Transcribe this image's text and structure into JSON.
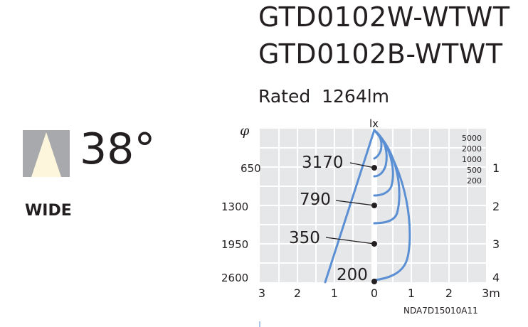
{
  "models": [
    "GTD0102W-WTWT",
    "GTD0102B-WTWT"
  ],
  "rated_label": "Rated",
  "rated_value": "1264lm",
  "beam_angle": "38°",
  "beam_type": "WIDE",
  "colors": {
    "icon_bg": "#a7a9ac",
    "icon_beam": "#fdf6dc",
    "grid_bg": "#e6e7e8",
    "curve": "#5b8fd4",
    "text": "#231f20"
  },
  "diagram": {
    "phi_label": "φ",
    "lx_label": "lx",
    "diameters": [
      "650",
      "1300",
      "1950",
      "2600"
    ],
    "distances": [
      "1",
      "2",
      "3",
      "4"
    ],
    "x_ticks": [
      "3",
      "2",
      "1",
      "0",
      "1",
      "2",
      "3m"
    ],
    "lux_levels": [
      "5000",
      "2000",
      "1000",
      "500",
      "200"
    ],
    "center_lux": [
      "3170",
      "790",
      "350",
      "200"
    ],
    "code": "NDA7D15010A11"
  }
}
